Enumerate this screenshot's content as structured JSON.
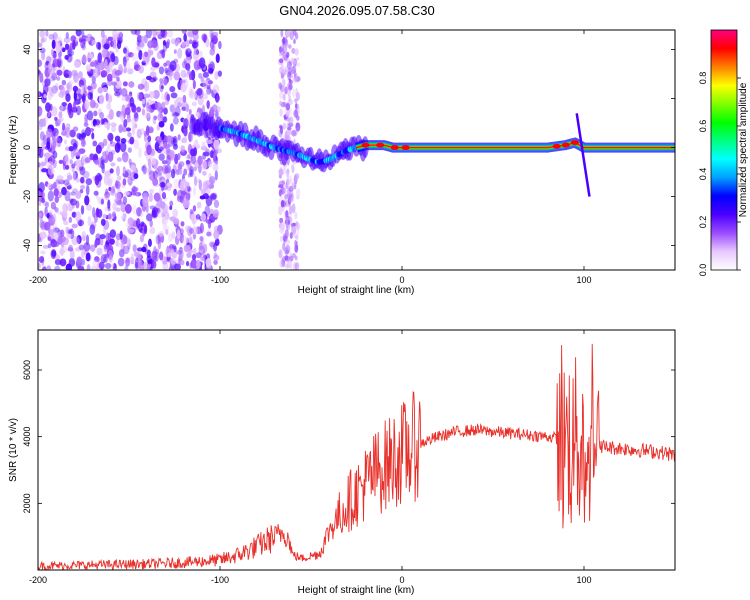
{
  "title": "GN04.2026.095.07.58.C30",
  "chart_data": [
    {
      "type": "heatmap",
      "xlabel": "Height of straight line (km)",
      "ylabel": "Frequency (Hz)",
      "xlim": [
        -200,
        150
      ],
      "ylim": [
        -50,
        48
      ],
      "xticks": [
        "-200",
        "-100",
        "0",
        "100"
      ],
      "xtick_values": [
        -200,
        -100,
        0,
        100
      ],
      "yticks": [
        "-40",
        "-20",
        "0",
        "20",
        "40"
      ],
      "ytick_values": [
        -40,
        -20,
        0,
        20,
        40
      ],
      "colorbar": {
        "label": "Normalized spectral amplitude",
        "ticks": [
          "0.0",
          "0.2",
          "0.4",
          "0.6",
          "0.8"
        ],
        "tick_values": [
          0.0,
          0.2,
          0.4,
          0.6,
          0.8
        ],
        "colors": [
          "#ffffff",
          "#e8c8ff",
          "#9b4dff",
          "#4b00ff",
          "#0000ff",
          "#00a0ff",
          "#00ffff",
          "#00ff80",
          "#00ff00",
          "#80ff00",
          "#ffff00",
          "#ff8000",
          "#ff0000",
          "#ff0080"
        ]
      },
      "ridge": {
        "x": [
          -115,
          -100,
          -90,
          -80,
          -70,
          -60,
          -50,
          -45,
          -40,
          -35,
          -30,
          -25,
          -20,
          -15,
          -10,
          -5,
          0,
          20,
          40,
          60,
          80,
          90,
          95,
          100,
          150
        ],
        "y": [
          10,
          8,
          6,
          3,
          0,
          -2,
          -5,
          -6,
          -5,
          -3,
          -1,
          0,
          1,
          1,
          1,
          0,
          0,
          0,
          0,
          0,
          0,
          1,
          2,
          0,
          0
        ]
      }
    },
    {
      "type": "line",
      "xlabel": "Height of straight line (km)",
      "ylabel": "SNR (10 * v/v)",
      "xlim": [
        -200,
        150
      ],
      "ylim": [
        0,
        7200
      ],
      "xticks": [
        "-200",
        "-100",
        "0",
        "100"
      ],
      "xtick_values": [
        -200,
        -100,
        0,
        100
      ],
      "yticks": [
        "2000",
        "4000",
        "6000"
      ],
      "ytick_values": [
        2000,
        4000,
        6000
      ],
      "series": [
        {
          "color": "#e8302a",
          "x": [
            -200,
            -180,
            -160,
            -140,
            -120,
            -100,
            -90,
            -80,
            -70,
            -65,
            -62,
            -60,
            -55,
            -45,
            -40,
            -35,
            -30,
            -25,
            -20,
            -15,
            -10,
            -5,
            0,
            10,
            20,
            30,
            40,
            50,
            60,
            70,
            80,
            85,
            90,
            95,
            100,
            102,
            104,
            106,
            110,
            120,
            130,
            140,
            150
          ],
          "y": [
            120,
            140,
            160,
            180,
            220,
            300,
            450,
            700,
            1000,
            1150,
            900,
            450,
            350,
            500,
            1200,
            1600,
            2000,
            2300,
            2600,
            2900,
            3100,
            3300,
            3500,
            3800,
            4000,
            4150,
            4200,
            4150,
            4100,
            4050,
            4000,
            3950,
            3900,
            4100,
            3800,
            1500,
            5500,
            4000,
            3700,
            3650,
            3600,
            3550,
            3450
          ]
        }
      ]
    }
  ]
}
